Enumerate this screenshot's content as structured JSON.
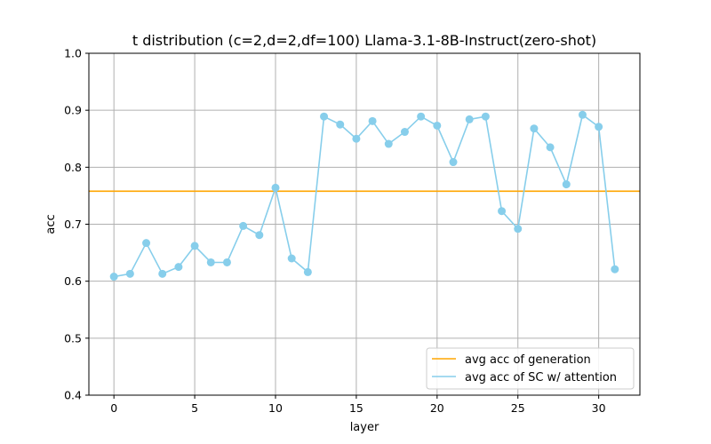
{
  "chart_data": {
    "type": "line",
    "title": "t distribution (c=2,d=2,df=100) Llama-3.1-8B-Instruct(zero-shot)",
    "xlabel": "layer",
    "ylabel": "acc",
    "xlim": [
      -1.55,
      32.55
    ],
    "ylim": [
      0.4,
      1.0
    ],
    "xticks": [
      0,
      5,
      10,
      15,
      20,
      25,
      30
    ],
    "yticks": [
      0.4,
      0.5,
      0.6,
      0.7,
      0.8,
      0.9,
      1.0
    ],
    "xtick_labels": [
      "0",
      "5",
      "10",
      "15",
      "20",
      "25",
      "30"
    ],
    "ytick_labels": [
      "0.4",
      "0.5",
      "0.6",
      "0.7",
      "0.8",
      "0.9",
      "1.0"
    ],
    "grid": true,
    "legend_position": "lower-right",
    "hline": {
      "name": "avg acc of generation",
      "y": 0.758,
      "color": "#ffa500"
    },
    "series": [
      {
        "name": "avg acc of SC w/ attention",
        "color": "#87ceeb",
        "x": [
          0,
          1,
          2,
          3,
          4,
          5,
          6,
          7,
          8,
          9,
          10,
          11,
          12,
          13,
          14,
          15,
          16,
          17,
          18,
          19,
          20,
          21,
          22,
          23,
          24,
          25,
          26,
          27,
          28,
          29,
          30,
          31
        ],
        "values": [
          0.608,
          0.613,
          0.667,
          0.613,
          0.625,
          0.662,
          0.633,
          0.633,
          0.697,
          0.681,
          0.764,
          0.64,
          0.616,
          0.889,
          0.875,
          0.85,
          0.881,
          0.841,
          0.862,
          0.889,
          0.873,
          0.809,
          0.884,
          0.889,
          0.723,
          0.692,
          0.868,
          0.835,
          0.77,
          0.892,
          0.871,
          0.621
        ]
      }
    ]
  }
}
